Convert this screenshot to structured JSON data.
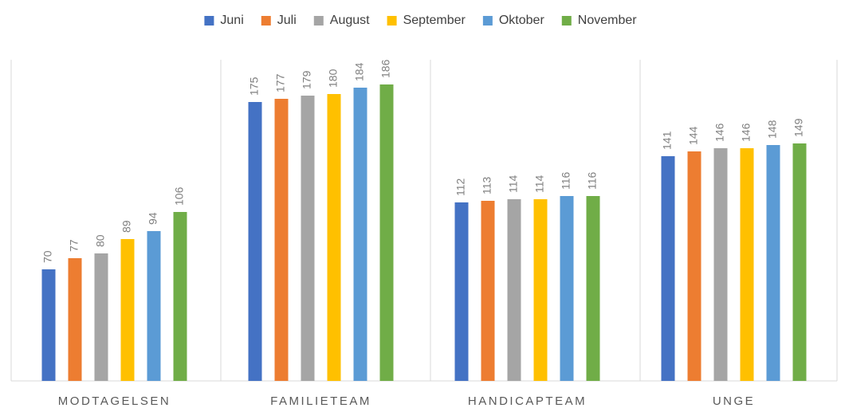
{
  "chart_data": {
    "type": "bar",
    "categories": [
      "MODTAGELSEN",
      "FAMILIETEAM",
      "HANDICAPTEAM",
      "UNGE"
    ],
    "series": [
      {
        "name": "Juni",
        "color": "#4472c4",
        "values": [
          70,
          175,
          112,
          141
        ]
      },
      {
        "name": "Juli",
        "color": "#ed7d31",
        "values": [
          77,
          177,
          113,
          144
        ]
      },
      {
        "name": "August",
        "color": "#a5a5a5",
        "values": [
          80,
          179,
          114,
          146
        ]
      },
      {
        "name": "September",
        "color": "#ffc000",
        "values": [
          89,
          180,
          114,
          146
        ]
      },
      {
        "name": "Oktober",
        "color": "#5b9bd5",
        "values": [
          94,
          184,
          116,
          148
        ]
      },
      {
        "name": "November",
        "color": "#70ad47",
        "values": [
          106,
          186,
          116,
          149
        ]
      }
    ],
    "ylim": [
      0,
      200
    ],
    "legend": "top",
    "grid": false
  }
}
